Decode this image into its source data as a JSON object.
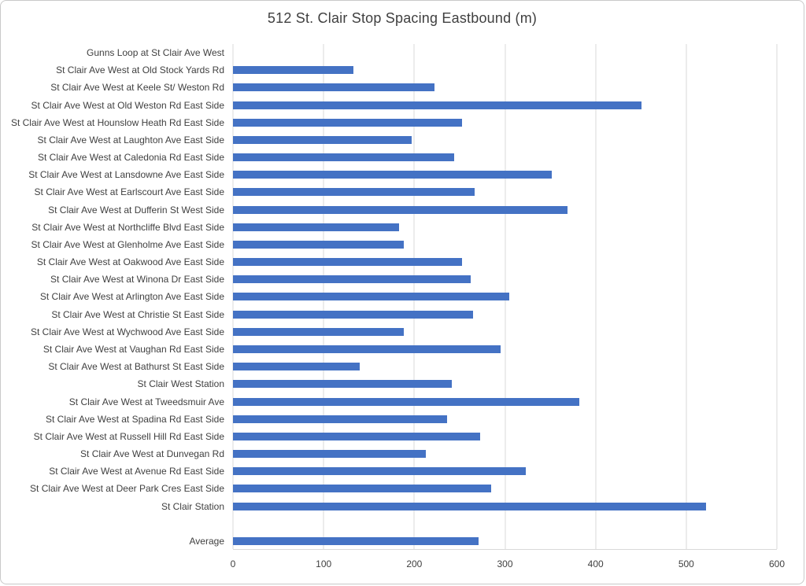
{
  "chart_data": {
    "type": "bar",
    "orientation": "horizontal",
    "title": "512 St. Clair Stop Spacing Eastbound (m)",
    "xlabel": "",
    "ylabel": "",
    "xlim": [
      0,
      600
    ],
    "xticks": [
      0,
      100,
      200,
      300,
      400,
      500,
      600
    ],
    "grid": true,
    "legend": false,
    "bar_color": "#4472C4",
    "categories": [
      "Gunns Loop at St Clair Ave West",
      "St Clair Ave West at Old Stock Yards Rd",
      "St Clair Ave West at Keele St/ Weston Rd",
      "St Clair Ave West at Old Weston Rd East Side",
      "St Clair Ave West at Hounslow Heath Rd East Side",
      "St Clair Ave West at Laughton Ave East Side",
      "St Clair Ave West at Caledonia Rd East Side",
      "St Clair Ave West at Lansdowne Ave East Side",
      "St Clair Ave West at Earlscourt Ave East Side",
      "St Clair Ave West at Dufferin St West Side",
      "St Clair Ave West at Northcliffe Blvd East Side",
      "St Clair Ave West at Glenholme Ave East Side",
      "St Clair Ave West at Oakwood Ave East Side",
      "St Clair Ave West at Winona Dr East Side",
      "St Clair Ave West at Arlington Ave East Side",
      "St Clair Ave West at Christie St East Side",
      "St Clair Ave West at Wychwood Ave East Side",
      "St Clair Ave West at Vaughan Rd East Side",
      "St Clair Ave West at Bathurst St East Side",
      "St Clair West Station",
      "St Clair Ave West at Tweedsmuir Ave",
      "St Clair Ave West at Spadina Rd East Side",
      "St Clair Ave West at Russell Hill Rd East Side",
      "St Clair Ave West at Dunvegan Rd",
      "St Clair Ave West at Avenue Rd East Side",
      "St Clair Ave West at Deer Park Cres East Side",
      "St Clair Station",
      "",
      "Average"
    ],
    "values": [
      0,
      133,
      222,
      451,
      253,
      197,
      244,
      352,
      267,
      369,
      183,
      188,
      253,
      262,
      305,
      265,
      188,
      295,
      140,
      241,
      382,
      236,
      273,
      213,
      323,
      285,
      522,
      null,
      271
    ]
  }
}
